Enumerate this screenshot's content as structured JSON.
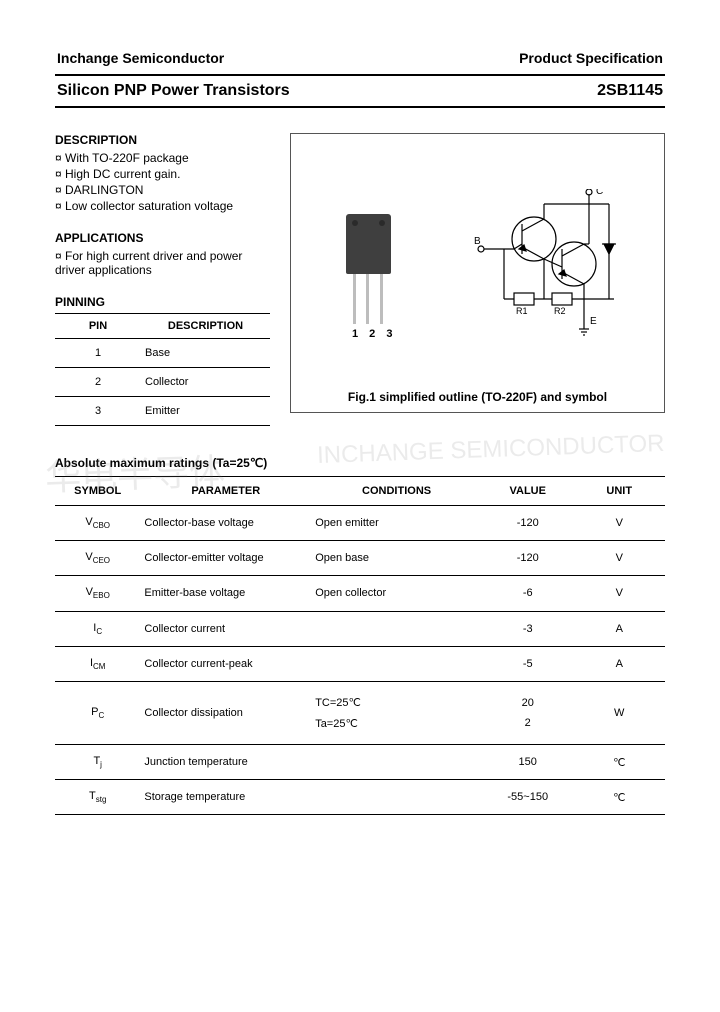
{
  "header": {
    "company": "Inchange Semiconductor",
    "doctype": "Product Specification"
  },
  "title": {
    "product": "Silicon PNP Power Transistors",
    "part": "2SB1145"
  },
  "description": {
    "heading": "DESCRIPTION",
    "items": [
      "With TO-220F package",
      "High DC current gain.",
      "DARLINGTON",
      "Low collector saturation voltage"
    ]
  },
  "applications": {
    "heading": "APPLICATIONS",
    "items": [
      "For high current driver and power driver applications"
    ]
  },
  "pinning": {
    "heading": "PINNING",
    "cols": [
      "PIN",
      "DESCRIPTION"
    ],
    "rows": [
      [
        "1",
        "Base"
      ],
      [
        "2",
        "Collector"
      ],
      [
        "3",
        "Emitter"
      ]
    ]
  },
  "figure": {
    "pkg_label": "1 2 3",
    "caption": "Fig.1 simplified outline (TO-220F) and symbol",
    "labels": {
      "B": "B",
      "C": "C",
      "E": "E",
      "R1": "R1",
      "R2": "R2"
    }
  },
  "ratings": {
    "heading": "Absolute maximum ratings (Ta=25℃)",
    "cols": [
      "SYMBOL",
      "PARAMETER",
      "CONDITIONS",
      "VALUE",
      "UNIT"
    ],
    "col_widths": [
      "14%",
      "28%",
      "28%",
      "15%",
      "15%"
    ],
    "rows": [
      {
        "sym_main": "V",
        "sym_sub": "CBO",
        "param": "Collector-base voltage",
        "cond": "Open emitter",
        "value": "-120",
        "unit": "V"
      },
      {
        "sym_main": "V",
        "sym_sub": "CEO",
        "param": "Collector-emitter voltage",
        "cond": "Open base",
        "value": "-120",
        "unit": "V"
      },
      {
        "sym_main": "V",
        "sym_sub": "EBO",
        "param": "Emitter-base voltage",
        "cond": "Open collector",
        "value": "-6",
        "unit": "V"
      },
      {
        "sym_main": "I",
        "sym_sub": "C",
        "param": "Collector current",
        "cond": "",
        "value": "-3",
        "unit": "A"
      },
      {
        "sym_main": "I",
        "sym_sub": "CM",
        "param": "Collector current-peak",
        "cond": "",
        "value": "-5",
        "unit": "A"
      },
      {
        "sym_main": "P",
        "sym_sub": "C",
        "param": "Collector dissipation",
        "cond_dual": [
          "TC=25℃",
          "Ta=25℃"
        ],
        "value_dual": [
          "20",
          "2"
        ],
        "unit": "W"
      },
      {
        "sym_main": "T",
        "sym_sub": "j",
        "param": "Junction temperature",
        "cond": "",
        "value": "150",
        "unit": "℃"
      },
      {
        "sym_main": "T",
        "sym_sub": "stg",
        "param": "Storage temperature",
        "cond": "",
        "value": "-55~150",
        "unit": "℃"
      }
    ]
  },
  "watermarks": {
    "left": "华电半导体",
    "right": "INCHANGE SEMICONDUCTOR"
  },
  "colors": {
    "text": "#000000",
    "bg": "#ffffff",
    "pkg": "#3f3f3f",
    "lead": "#bdbdbd"
  }
}
